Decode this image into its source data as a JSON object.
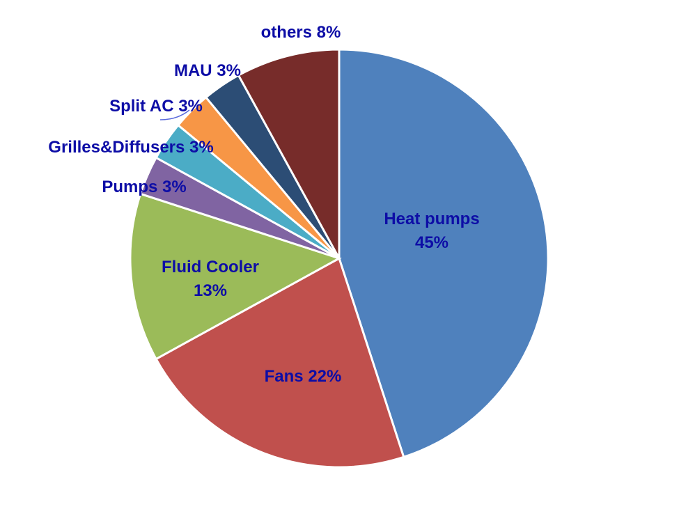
{
  "chart_data": {
    "type": "pie",
    "title": "",
    "start_angle_deg": 0,
    "direction": "clockwise",
    "slices": [
      {
        "name": "Heat pumps",
        "value": 45,
        "label_lines": [
          "Heat pumps",
          "45%"
        ],
        "color": "#4f81bd"
      },
      {
        "name": "Fans",
        "value": 22,
        "label_lines": [
          "Fans 22%"
        ],
        "color": "#c0504d"
      },
      {
        "name": "Fluid Cooler",
        "value": 13,
        "label_lines": [
          "Fluid Cooler",
          "13%"
        ],
        "color": "#9bbb59"
      },
      {
        "name": "Pumps",
        "value": 3,
        "label_lines": [
          "Pumps 3%"
        ],
        "color": "#8064a2"
      },
      {
        "name": "Grilles&Diffusers",
        "value": 3,
        "label_lines": [
          "Grilles&Diffusers 3%"
        ],
        "color": "#4bacc6"
      },
      {
        "name": "Split AC",
        "value": 3,
        "label_lines": [
          "Split AC 3%"
        ],
        "color": "#f79646"
      },
      {
        "name": "MAU",
        "value": 3,
        "label_lines": [
          "MAU 3%"
        ],
        "color": "#2c4d75"
      },
      {
        "name": "others",
        "value": 8,
        "label_lines": [
          "others 8%"
        ],
        "color": "#772c2a"
      }
    ],
    "label_color": "#0d0da6",
    "legend": "none"
  }
}
